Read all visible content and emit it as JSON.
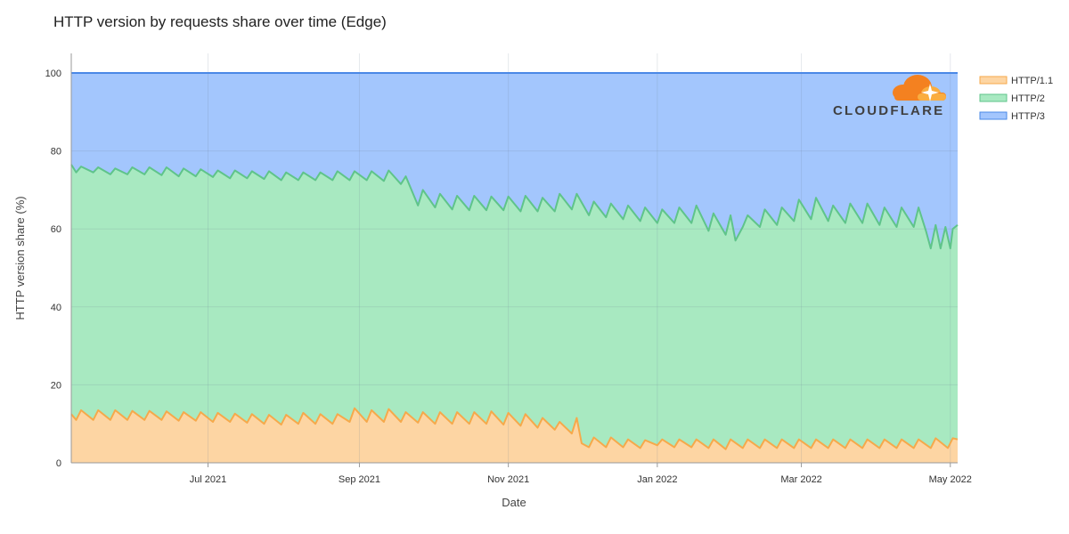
{
  "chart_data": {
    "type": "area",
    "stacked": true,
    "title": "HTTP version by requests share over time (Edge)",
    "xlabel": "Date",
    "ylabel": "HTTP version share (%)",
    "ylim": [
      0,
      100
    ],
    "yticks": [
      "0",
      "20",
      "40",
      "60",
      "80",
      "100"
    ],
    "xticks": [
      {
        "label": "Jul 2021",
        "date": "2021-07-01"
      },
      {
        "label": "Sep 2021",
        "date": "2021-09-01"
      },
      {
        "label": "Nov 2021",
        "date": "2021-11-01"
      },
      {
        "label": "Jan 2022",
        "date": "2022-01-01"
      },
      {
        "label": "Mar 2022",
        "date": "2022-03-01"
      },
      {
        "label": "May 2022",
        "date": "2022-05-01"
      }
    ],
    "x_range": [
      "2021-05-06",
      "2022-05-04"
    ],
    "grid": true,
    "legend_position": "right",
    "series": [
      {
        "name": "HTTP/1.1",
        "color": "#f6a94b",
        "fill": "#fdd5a3",
        "values": [
          [
            "2021-05-06",
            12.5
          ],
          [
            "2021-05-08",
            11.0
          ],
          [
            "2021-05-10",
            13.5
          ],
          [
            "2021-05-15",
            11.0
          ],
          [
            "2021-05-17",
            13.5
          ],
          [
            "2021-05-22",
            11.0
          ],
          [
            "2021-05-24",
            13.5
          ],
          [
            "2021-05-29",
            11.0
          ],
          [
            "2021-05-31",
            13.3
          ],
          [
            "2021-06-05",
            11.0
          ],
          [
            "2021-06-07",
            13.3
          ],
          [
            "2021-06-12",
            11.0
          ],
          [
            "2021-06-14",
            13.2
          ],
          [
            "2021-06-19",
            10.8
          ],
          [
            "2021-06-21",
            13.0
          ],
          [
            "2021-06-26",
            10.8
          ],
          [
            "2021-06-28",
            13.0
          ],
          [
            "2021-07-03",
            10.5
          ],
          [
            "2021-07-05",
            12.8
          ],
          [
            "2021-07-10",
            10.5
          ],
          [
            "2021-07-12",
            12.6
          ],
          [
            "2021-07-17",
            10.3
          ],
          [
            "2021-07-19",
            12.5
          ],
          [
            "2021-07-24",
            10.0
          ],
          [
            "2021-07-26",
            12.3
          ],
          [
            "2021-07-31",
            9.8
          ],
          [
            "2021-08-02",
            12.3
          ],
          [
            "2021-08-07",
            10.0
          ],
          [
            "2021-08-09",
            12.8
          ],
          [
            "2021-08-14",
            10.0
          ],
          [
            "2021-08-16",
            12.5
          ],
          [
            "2021-08-21",
            10.0
          ],
          [
            "2021-08-23",
            12.5
          ],
          [
            "2021-08-28",
            10.5
          ],
          [
            "2021-08-30",
            14.0
          ],
          [
            "2021-09-04",
            10.5
          ],
          [
            "2021-09-06",
            13.5
          ],
          [
            "2021-09-11",
            10.5
          ],
          [
            "2021-09-13",
            13.8
          ],
          [
            "2021-09-18",
            10.5
          ],
          [
            "2021-09-20",
            13.0
          ],
          [
            "2021-09-25",
            10.3
          ],
          [
            "2021-09-27",
            13.0
          ],
          [
            "2021-10-02",
            10.0
          ],
          [
            "2021-10-04",
            13.0
          ],
          [
            "2021-10-09",
            10.0
          ],
          [
            "2021-10-11",
            13.0
          ],
          [
            "2021-10-16",
            10.0
          ],
          [
            "2021-10-18",
            13.0
          ],
          [
            "2021-10-23",
            10.0
          ],
          [
            "2021-10-25",
            13.2
          ],
          [
            "2021-10-30",
            9.8
          ],
          [
            "2021-11-01",
            12.8
          ],
          [
            "2021-11-06",
            9.5
          ],
          [
            "2021-11-08",
            12.5
          ],
          [
            "2021-11-13",
            9.0
          ],
          [
            "2021-11-15",
            11.5
          ],
          [
            "2021-11-20",
            8.5
          ],
          [
            "2021-11-22",
            10.5
          ],
          [
            "2021-11-27",
            7.5
          ],
          [
            "2021-11-29",
            11.5
          ],
          [
            "2021-12-01",
            5.0
          ],
          [
            "2021-12-04",
            4.0
          ],
          [
            "2021-12-06",
            6.5
          ],
          [
            "2021-12-11",
            4.0
          ],
          [
            "2021-12-13",
            6.5
          ],
          [
            "2021-12-18",
            4.0
          ],
          [
            "2021-12-20",
            6.0
          ],
          [
            "2021-12-25",
            3.8
          ],
          [
            "2021-12-27",
            5.8
          ],
          [
            "2022-01-01",
            4.5
          ],
          [
            "2022-01-03",
            6.0
          ],
          [
            "2022-01-08",
            4.0
          ],
          [
            "2022-01-10",
            6.0
          ],
          [
            "2022-01-15",
            4.0
          ],
          [
            "2022-01-17",
            6.0
          ],
          [
            "2022-01-22",
            3.8
          ],
          [
            "2022-01-24",
            6.0
          ],
          [
            "2022-01-29",
            3.5
          ],
          [
            "2022-01-31",
            6.0
          ],
          [
            "2022-02-05",
            3.8
          ],
          [
            "2022-02-07",
            6.0
          ],
          [
            "2022-02-12",
            3.8
          ],
          [
            "2022-02-14",
            6.0
          ],
          [
            "2022-02-19",
            3.8
          ],
          [
            "2022-02-21",
            6.0
          ],
          [
            "2022-02-26",
            3.8
          ],
          [
            "2022-02-28",
            6.0
          ],
          [
            "2022-03-05",
            3.8
          ],
          [
            "2022-03-07",
            6.0
          ],
          [
            "2022-03-12",
            3.8
          ],
          [
            "2022-03-14",
            6.0
          ],
          [
            "2022-03-19",
            3.8
          ],
          [
            "2022-03-21",
            6.0
          ],
          [
            "2022-03-26",
            3.8
          ],
          [
            "2022-03-28",
            6.0
          ],
          [
            "2022-04-02",
            3.8
          ],
          [
            "2022-04-04",
            6.0
          ],
          [
            "2022-04-09",
            3.8
          ],
          [
            "2022-04-11",
            6.0
          ],
          [
            "2022-04-16",
            3.8
          ],
          [
            "2022-04-18",
            6.0
          ],
          [
            "2022-04-23",
            3.8
          ],
          [
            "2022-04-25",
            6.3
          ],
          [
            "2022-04-30",
            3.8
          ],
          [
            "2022-05-02",
            6.3
          ],
          [
            "2022-05-04",
            6.0
          ]
        ]
      },
      {
        "name": "HTTP/2",
        "color": "#5fc48a",
        "fill": "#a8e9c1",
        "values": [
          [
            "2021-05-06",
            76.5
          ],
          [
            "2021-05-08",
            74.5
          ],
          [
            "2021-05-10",
            76.0
          ],
          [
            "2021-05-15",
            74.5
          ],
          [
            "2021-05-17",
            75.8
          ],
          [
            "2021-05-22",
            74.0
          ],
          [
            "2021-05-24",
            75.5
          ],
          [
            "2021-05-29",
            74.0
          ],
          [
            "2021-05-31",
            75.8
          ],
          [
            "2021-06-05",
            74.0
          ],
          [
            "2021-06-07",
            75.8
          ],
          [
            "2021-06-12",
            73.8
          ],
          [
            "2021-06-14",
            75.8
          ],
          [
            "2021-06-19",
            73.5
          ],
          [
            "2021-06-21",
            75.5
          ],
          [
            "2021-06-26",
            73.5
          ],
          [
            "2021-06-28",
            75.3
          ],
          [
            "2021-07-03",
            73.3
          ],
          [
            "2021-07-05",
            75.0
          ],
          [
            "2021-07-10",
            73.0
          ],
          [
            "2021-07-12",
            75.0
          ],
          [
            "2021-07-17",
            73.0
          ],
          [
            "2021-07-19",
            74.8
          ],
          [
            "2021-07-24",
            72.8
          ],
          [
            "2021-07-26",
            74.8
          ],
          [
            "2021-07-31",
            72.5
          ],
          [
            "2021-08-02",
            74.5
          ],
          [
            "2021-08-07",
            72.5
          ],
          [
            "2021-08-09",
            74.5
          ],
          [
            "2021-08-14",
            72.5
          ],
          [
            "2021-08-16",
            74.5
          ],
          [
            "2021-08-21",
            72.5
          ],
          [
            "2021-08-23",
            74.8
          ],
          [
            "2021-08-28",
            72.5
          ],
          [
            "2021-08-30",
            74.8
          ],
          [
            "2021-09-04",
            72.5
          ],
          [
            "2021-09-06",
            74.8
          ],
          [
            "2021-09-11",
            72.3
          ],
          [
            "2021-09-13",
            75.0
          ],
          [
            "2021-09-18",
            71.5
          ],
          [
            "2021-09-20",
            73.5
          ],
          [
            "2021-09-25",
            66.0
          ],
          [
            "2021-09-27",
            70.0
          ],
          [
            "2021-10-02",
            65.5
          ],
          [
            "2021-10-04",
            69.0
          ],
          [
            "2021-10-09",
            65.0
          ],
          [
            "2021-10-11",
            68.5
          ],
          [
            "2021-10-16",
            64.8
          ],
          [
            "2021-10-18",
            68.5
          ],
          [
            "2021-10-23",
            64.8
          ],
          [
            "2021-10-25",
            68.3
          ],
          [
            "2021-10-30",
            64.8
          ],
          [
            "2021-11-01",
            68.3
          ],
          [
            "2021-11-06",
            64.5
          ],
          [
            "2021-11-08",
            68.5
          ],
          [
            "2021-11-13",
            64.5
          ],
          [
            "2021-11-15",
            68.0
          ],
          [
            "2021-11-20",
            64.5
          ],
          [
            "2021-11-22",
            69.0
          ],
          [
            "2021-11-27",
            65.0
          ],
          [
            "2021-11-29",
            69.0
          ],
          [
            "2021-12-04",
            63.5
          ],
          [
            "2021-12-06",
            67.0
          ],
          [
            "2021-12-11",
            63.0
          ],
          [
            "2021-12-13",
            66.5
          ],
          [
            "2021-12-18",
            62.5
          ],
          [
            "2021-12-20",
            66.0
          ],
          [
            "2021-12-25",
            62.0
          ],
          [
            "2021-12-27",
            65.5
          ],
          [
            "2022-01-01",
            61.5
          ],
          [
            "2022-01-03",
            65.0
          ],
          [
            "2022-01-08",
            61.5
          ],
          [
            "2022-01-10",
            65.5
          ],
          [
            "2022-01-15",
            61.5
          ],
          [
            "2022-01-17",
            66.0
          ],
          [
            "2022-01-22",
            59.5
          ],
          [
            "2022-01-24",
            64.0
          ],
          [
            "2022-01-29",
            58.5
          ],
          [
            "2022-01-31",
            63.5
          ],
          [
            "2022-02-02",
            57.0
          ],
          [
            "2022-02-05",
            60.5
          ],
          [
            "2022-02-07",
            63.5
          ],
          [
            "2022-02-12",
            60.5
          ],
          [
            "2022-02-14",
            65.0
          ],
          [
            "2022-02-19",
            61.0
          ],
          [
            "2022-02-21",
            65.5
          ],
          [
            "2022-02-26",
            62.0
          ],
          [
            "2022-02-28",
            67.5
          ],
          [
            "2022-03-05",
            62.5
          ],
          [
            "2022-03-07",
            68.0
          ],
          [
            "2022-03-12",
            62.0
          ],
          [
            "2022-03-14",
            66.0
          ],
          [
            "2022-03-19",
            61.5
          ],
          [
            "2022-03-21",
            66.5
          ],
          [
            "2022-03-26",
            61.5
          ],
          [
            "2022-03-28",
            66.5
          ],
          [
            "2022-04-02",
            61.0
          ],
          [
            "2022-04-04",
            65.5
          ],
          [
            "2022-04-09",
            60.5
          ],
          [
            "2022-04-11",
            65.5
          ],
          [
            "2022-04-16",
            60.5
          ],
          [
            "2022-04-18",
            65.5
          ],
          [
            "2022-04-21",
            59.5
          ],
          [
            "2022-04-23",
            55.0
          ],
          [
            "2022-04-25",
            61.0
          ],
          [
            "2022-04-27",
            55.0
          ],
          [
            "2022-04-29",
            60.5
          ],
          [
            "2022-05-01",
            55.0
          ],
          [
            "2022-05-02",
            60.0
          ],
          [
            "2022-05-04",
            61.0
          ]
        ]
      },
      {
        "name": "HTTP/3",
        "color": "#4a88e6",
        "fill": "#a3c6fd",
        "values": [
          [
            "2021-05-06",
            100
          ],
          [
            "2022-05-04",
            100
          ]
        ]
      }
    ]
  }
}
